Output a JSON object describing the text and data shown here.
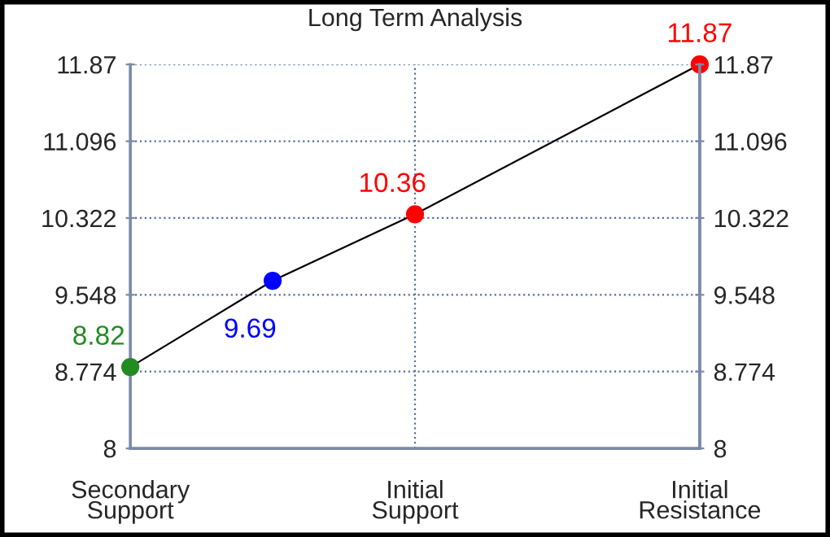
{
  "chart_data": {
    "type": "line",
    "title": "Long Term Analysis",
    "categories": [
      "Secondary\nSupport",
      null,
      "Initial\nSupport",
      null,
      "Initial\nResistance"
    ],
    "series": [
      {
        "color": "#000000",
        "colors": [
          "#228b22",
          "#0000ff",
          "#ff0000",
          null,
          "#ff0000"
        ],
        "values": [
          8.82,
          9.69,
          10.36,
          null,
          11.87
        ]
      }
    ],
    "ylim": [
      8,
      11.87
    ],
    "yticks": [
      8,
      8.774,
      9.548,
      10.322,
      11.096,
      11.87
    ],
    "y2lim": [
      8,
      11.87
    ],
    "y2ticks": [
      8,
      8.774,
      9.548,
      10.322,
      11.096,
      11.87
    ],
    "grid": true,
    "marker": "circle",
    "line_style": "solid",
    "data_labels": true
  }
}
